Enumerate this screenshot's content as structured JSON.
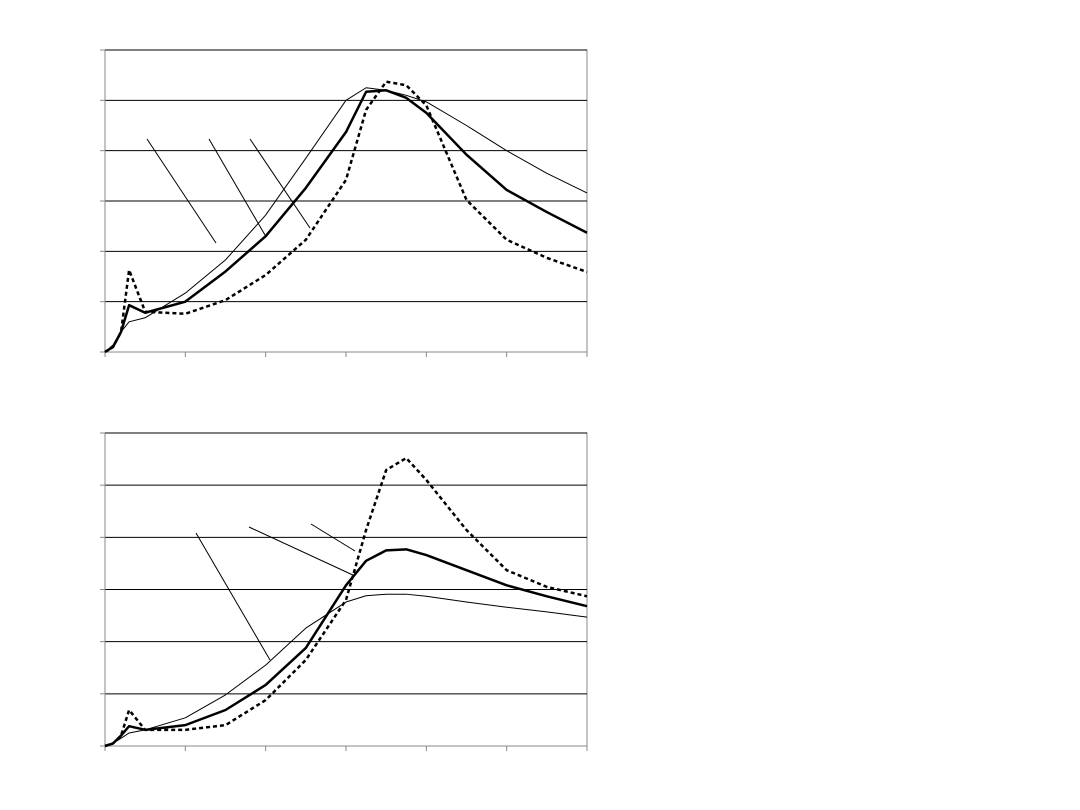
{
  "chart_data": [
    {
      "type": "line",
      "x": [
        0,
        0.1,
        0.2,
        0.3,
        0.5,
        1,
        1.5,
        2,
        2.5,
        3,
        3.25,
        3.5,
        3.75,
        4,
        4.5,
        5,
        5.5,
        6
      ],
      "xlim": [
        0,
        6
      ],
      "xticks": [
        0,
        1,
        2,
        3,
        4,
        5,
        6
      ],
      "ylim": [
        0,
        6
      ],
      "yticks": [
        0,
        1,
        2,
        3,
        4,
        5,
        6
      ],
      "grid": true,
      "series": [
        {
          "color": "#000000",
          "line_width": 1,
          "dashed": false,
          "values": [
            0,
            0.14,
            0.4,
            0.6,
            0.68,
            1.17,
            1.83,
            2.72,
            3.85,
            5.0,
            5.25,
            5.2,
            5.1,
            4.97,
            4.5,
            4.0,
            3.55,
            3.16
          ]
        },
        {
          "color": "#000000",
          "line_width": 2.5,
          "dashed": false,
          "values": [
            0,
            0.1,
            0.4,
            0.93,
            0.78,
            1.0,
            1.6,
            2.3,
            3.26,
            4.37,
            5.17,
            5.2,
            5.05,
            4.75,
            3.92,
            3.22,
            2.78,
            2.37
          ]
        },
        {
          "color": "#000000",
          "line_width": 2.5,
          "dashed": true,
          "values": [
            0,
            0.1,
            0.4,
            1.63,
            0.8,
            0.76,
            1.03,
            1.53,
            2.23,
            3.42,
            4.81,
            5.37,
            5.3,
            4.9,
            3.02,
            2.23,
            1.87,
            1.59
          ]
        }
      ]
    },
    {
      "type": "line",
      "x": [
        0,
        0.1,
        0.2,
        0.3,
        0.5,
        1,
        1.5,
        2,
        2.5,
        3,
        3.25,
        3.5,
        3.75,
        4,
        4.5,
        5,
        5.5,
        6
      ],
      "xlim": [
        0,
        6
      ],
      "xticks": [
        0,
        1,
        2,
        3,
        4,
        5,
        6
      ],
      "ylim": [
        0,
        6
      ],
      "yticks": [
        0,
        1,
        2,
        3,
        4,
        5,
        6
      ],
      "grid": true,
      "series": [
        {
          "color": "#000000",
          "line_width": 1,
          "dashed": false,
          "values": [
            0,
            0.05,
            0.15,
            0.25,
            0.31,
            0.54,
            0.98,
            1.55,
            2.26,
            2.76,
            2.88,
            2.91,
            2.91,
            2.87,
            2.76,
            2.66,
            2.57,
            2.47
          ]
        },
        {
          "color": "#000000",
          "line_width": 2.5,
          "dashed": false,
          "values": [
            0,
            0.05,
            0.2,
            0.38,
            0.31,
            0.4,
            0.69,
            1.17,
            1.88,
            3.08,
            3.55,
            3.75,
            3.77,
            3.66,
            3.37,
            3.08,
            2.87,
            2.68
          ]
        },
        {
          "color": "#000000",
          "line_width": 2.5,
          "dashed": true,
          "values": [
            0,
            0.05,
            0.2,
            0.69,
            0.31,
            0.31,
            0.4,
            0.88,
            1.65,
            2.8,
            4.14,
            5.29,
            5.52,
            5.1,
            4.14,
            3.37,
            3.05,
            2.87
          ]
        }
      ]
    }
  ]
}
